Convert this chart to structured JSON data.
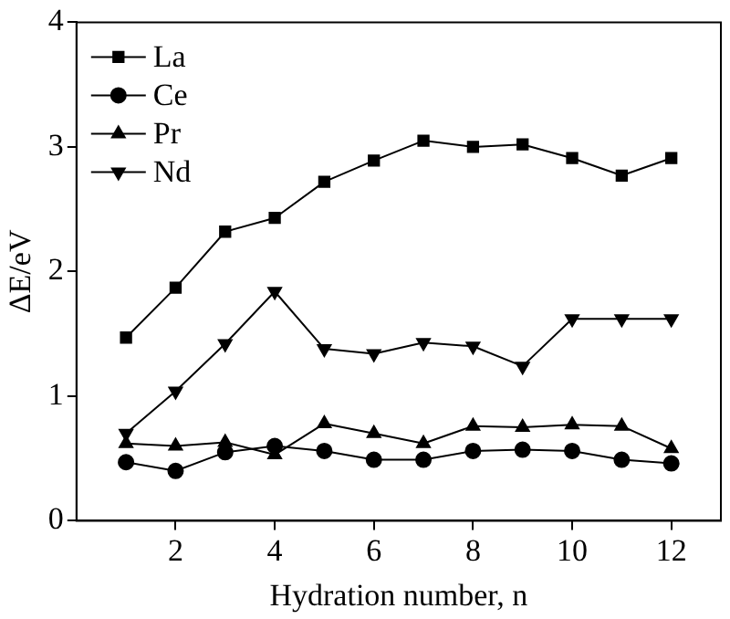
{
  "chart_data": {
    "type": "line",
    "xlabel": "Hydration number, n",
    "ylabel": "ΔE/eV",
    "x": [
      1,
      2,
      3,
      4,
      5,
      6,
      7,
      8,
      9,
      10,
      11,
      12
    ],
    "series": [
      {
        "name": "La",
        "color": "#000000",
        "marker": "square",
        "values": [
          1.47,
          1.87,
          2.32,
          2.43,
          2.72,
          2.89,
          3.05,
          3.0,
          3.02,
          2.91,
          2.77,
          2.91
        ]
      },
      {
        "name": "Ce",
        "color": "#000000",
        "marker": "circle",
        "values": [
          0.47,
          0.4,
          0.55,
          0.6,
          0.56,
          0.49,
          0.49,
          0.56,
          0.57,
          0.56,
          0.49,
          0.46
        ]
      },
      {
        "name": "Pr",
        "color": "#000000",
        "marker": "triangle",
        "values": [
          0.62,
          0.6,
          0.63,
          0.53,
          0.78,
          0.7,
          0.62,
          0.76,
          0.75,
          0.77,
          0.76,
          0.58
        ]
      },
      {
        "name": "Nd",
        "color": "#000000",
        "marker": "triangle-down",
        "values": [
          0.7,
          1.04,
          1.42,
          1.84,
          1.38,
          1.34,
          1.43,
          1.4,
          1.24,
          1.62,
          1.62,
          1.62
        ]
      }
    ],
    "xlim": [
      0,
      13
    ],
    "xticks": [
      2,
      4,
      6,
      8,
      10,
      12
    ],
    "ylim": [
      0,
      4
    ],
    "yticks": [
      0,
      1,
      2,
      3,
      4
    ],
    "grid": false,
    "legend": "top left",
    "line_style": "solid"
  }
}
